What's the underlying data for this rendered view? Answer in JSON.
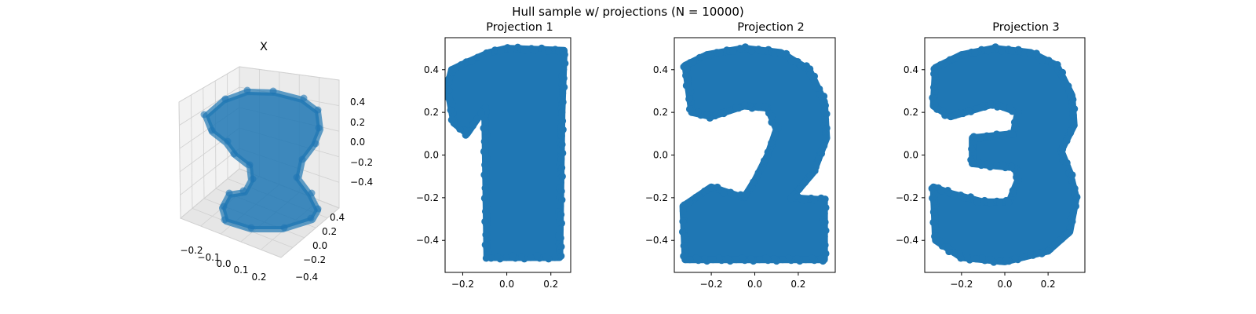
{
  "figure": {
    "title": "Hull sample w/ projections (N = 10000)"
  },
  "chart_data": [
    {
      "type": "scatter",
      "projection": "3d",
      "title": "X",
      "marker_color": "#1f77b4",
      "xticks": [
        "−0.2",
        "−0.1",
        "0.0",
        "0.1",
        "0.2"
      ],
      "yticks": [
        "−0.4",
        "−0.2",
        "0.0",
        "0.2",
        "0.4"
      ],
      "zticks": [
        "−0.4",
        "−0.2",
        "0.0",
        "0.2",
        "0.4"
      ],
      "xlim": [
        -0.27,
        0.27
      ],
      "ylim": [
        -0.35,
        0.35
      ],
      "zlim": [
        -0.5,
        0.5
      ],
      "shape": "solid digit '2' (front) / '1' / '3' silhouettes depending on view"
    },
    {
      "type": "scatter",
      "title": "Projection 1",
      "marker_color": "#1f77b4",
      "xlim": [
        -0.28,
        0.29
      ],
      "ylim": [
        -0.55,
        0.55
      ],
      "xticks": [
        "−0.2",
        "0.0",
        "0.2"
      ],
      "yticks": [
        "−0.4",
        "−0.2",
        "0.0",
        "0.2",
        "0.4"
      ],
      "xtick_values": [
        -0.2,
        0.0,
        0.2
      ],
      "ytick_values": [
        -0.4,
        -0.2,
        0.0,
        0.2,
        0.4
      ],
      "shape_outline": [
        [
          -0.27,
          0.32
        ],
        [
          -0.25,
          0.4
        ],
        [
          -0.19,
          0.43
        ],
        [
          -0.08,
          0.48
        ],
        [
          0.0,
          0.5
        ],
        [
          0.26,
          0.49
        ],
        [
          0.25,
          0.2
        ],
        [
          0.24,
          -0.48
        ],
        [
          -0.09,
          -0.48
        ],
        [
          -0.1,
          0.22
        ],
        [
          -0.18,
          0.1
        ],
        [
          -0.24,
          0.15
        ]
      ]
    },
    {
      "type": "scatter",
      "title": "Projection 2",
      "marker_color": "#1f77b4",
      "xlim": [
        -0.37,
        0.37
      ],
      "ylim": [
        -0.55,
        0.55
      ],
      "xticks": [
        "−0.2",
        "0.0",
        "0.2"
      ],
      "yticks": [
        "−0.4",
        "−0.2",
        "0.0",
        "0.2",
        "0.4"
      ],
      "xtick_values": [
        -0.2,
        0.0,
        0.2
      ],
      "ytick_values": [
        -0.4,
        -0.2,
        0.0,
        0.2,
        0.4
      ],
      "shape_outline": [
        [
          -0.32,
          0.42
        ],
        [
          -0.22,
          0.47
        ],
        [
          -0.05,
          0.5
        ],
        [
          0.12,
          0.48
        ],
        [
          0.25,
          0.4
        ],
        [
          0.32,
          0.25
        ],
        [
          0.33,
          0.08
        ],
        [
          0.27,
          -0.08
        ],
        [
          0.17,
          -0.2
        ],
        [
          0.32,
          -0.21
        ],
        [
          0.32,
          -0.49
        ],
        [
          -0.32,
          -0.49
        ],
        [
          -0.33,
          -0.24
        ],
        [
          -0.2,
          -0.15
        ],
        [
          -0.05,
          -0.2
        ],
        [
          0.0,
          -0.12
        ],
        [
          0.06,
          0.0
        ],
        [
          0.1,
          0.12
        ],
        [
          0.06,
          0.22
        ],
        [
          -0.05,
          0.23
        ],
        [
          -0.2,
          0.18
        ],
        [
          -0.29,
          0.2
        ]
      ]
    },
    {
      "type": "scatter",
      "title": "Projection 3",
      "marker_color": "#1f77b4",
      "xlim": [
        -0.37,
        0.37
      ],
      "ylim": [
        -0.55,
        0.55
      ],
      "xticks": [
        "−0.2",
        "0.0",
        "0.2"
      ],
      "yticks": [
        "−0.4",
        "−0.2",
        "0.0",
        "0.2",
        "0.4"
      ],
      "xtick_values": [
        -0.2,
        0.0,
        0.2
      ],
      "ytick_values": [
        -0.4,
        -0.2,
        0.0,
        0.2,
        0.4
      ],
      "shape_outline": [
        [
          -0.32,
          0.41
        ],
        [
          -0.2,
          0.47
        ],
        [
          -0.05,
          0.5
        ],
        [
          0.12,
          0.48
        ],
        [
          0.24,
          0.42
        ],
        [
          0.31,
          0.28
        ],
        [
          0.32,
          0.14
        ],
        [
          0.26,
          0.02
        ],
        [
          0.3,
          -0.08
        ],
        [
          0.33,
          -0.2
        ],
        [
          0.3,
          -0.36
        ],
        [
          0.2,
          -0.45
        ],
        [
          0.0,
          -0.5
        ],
        [
          -0.2,
          -0.48
        ],
        [
          -0.32,
          -0.4
        ],
        [
          -0.33,
          -0.15
        ],
        [
          -0.25,
          -0.18
        ],
        [
          -0.1,
          -0.22
        ],
        [
          0.02,
          -0.22
        ],
        [
          0.06,
          -0.12
        ],
        [
          0.05,
          -0.06
        ],
        [
          -0.15,
          -0.04
        ],
        [
          -0.15,
          0.08
        ],
        [
          0.04,
          0.1
        ],
        [
          0.06,
          0.2
        ],
        [
          -0.05,
          0.24
        ],
        [
          -0.25,
          0.18
        ],
        [
          -0.33,
          0.23
        ]
      ]
    }
  ]
}
